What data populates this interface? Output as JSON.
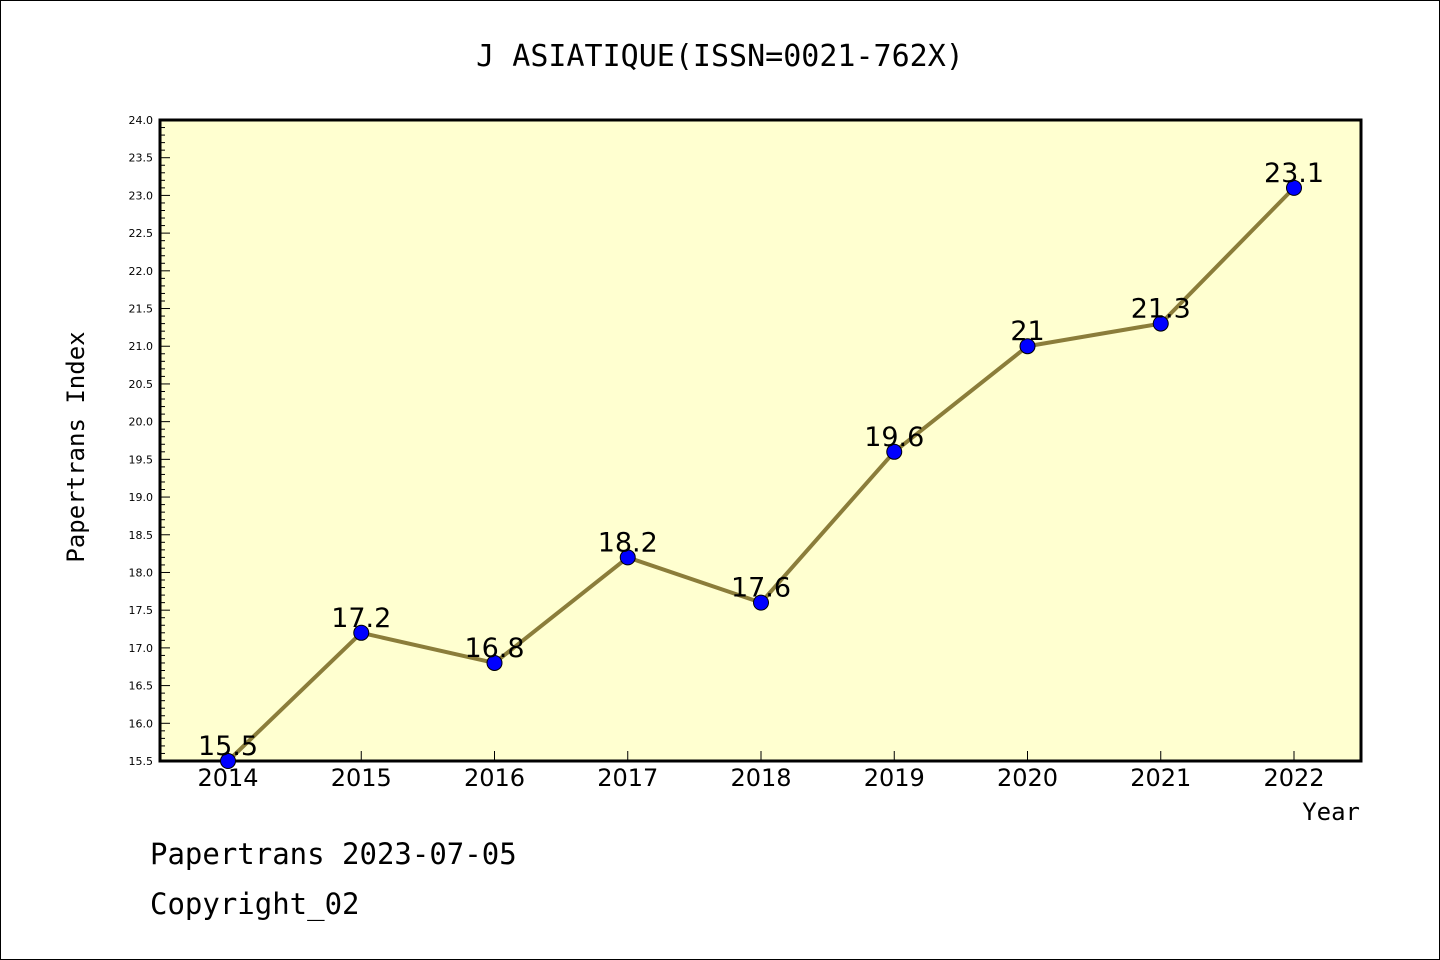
{
  "chart_data": {
    "type": "line",
    "title": "J ASIATIQUE(ISSN=0021-762X)",
    "xlabel": "Year",
    "ylabel": "Papertrans Index",
    "x": [
      "2014",
      "2015",
      "2016",
      "2017",
      "2018",
      "2019",
      "2020",
      "2021",
      "2022"
    ],
    "values": [
      15.5,
      17.2,
      16.8,
      18.2,
      17.6,
      19.6,
      21,
      21.3,
      23.1
    ],
    "data_labels": [
      "15.5",
      "17.2",
      "16.8",
      "18.2",
      "17.6",
      "19.6",
      "21",
      "21.3",
      "23.1"
    ],
    "ylim": [
      15.5,
      24.0
    ],
    "yticks": [
      "15.5",
      "16.0",
      "16.5",
      "17.0",
      "17.5",
      "18.0",
      "18.5",
      "19.0",
      "19.5",
      "20.0",
      "20.5",
      "21.0",
      "21.5",
      "22.0",
      "22.5",
      "23.0",
      "23.5",
      "24.0"
    ],
    "grid": false,
    "colors": {
      "plot_background": "#ffffd0",
      "line": "#8b7d3a",
      "marker": "#0000ff"
    }
  },
  "footer": {
    "line1": "Papertrans 2023-07-05",
    "line2": "Copyright_02"
  }
}
